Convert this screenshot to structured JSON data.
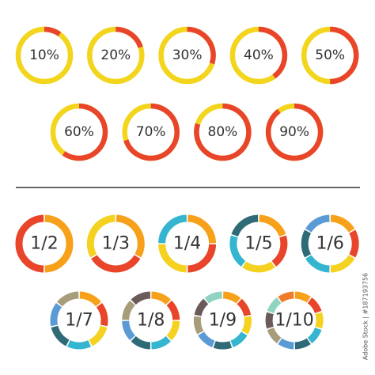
{
  "percent_rings": {
    "base_color": "#f2d51c",
    "fill_color": "#e8452b",
    "items": [
      {
        "label": "10%",
        "value": 10
      },
      {
        "label": "20%",
        "value": 20
      },
      {
        "label": "30%",
        "value": 30
      },
      {
        "label": "40%",
        "value": 40
      },
      {
        "label": "50%",
        "value": 50
      },
      {
        "label": "60%",
        "value": 60
      },
      {
        "label": "70%",
        "value": 70
      },
      {
        "label": "80%",
        "value": 80
      },
      {
        "label": "90%",
        "value": 90
      }
    ]
  },
  "fraction_rings": {
    "colors": [
      "#f7a11a",
      "#e8452b",
      "#f4d21f",
      "#35b5d0",
      "#2f6b77",
      "#5a9bd5",
      "#a89d7a",
      "#6b5a5a",
      "#8fd3c0",
      "#f07b2a"
    ],
    "items": [
      {
        "label": "1/2",
        "denominator": 2
      },
      {
        "label": "1/3",
        "denominator": 3
      },
      {
        "label": "1/4",
        "denominator": 4
      },
      {
        "label": "1/5",
        "denominator": 5
      },
      {
        "label": "1/6",
        "denominator": 6
      },
      {
        "label": "1/7",
        "denominator": 7
      },
      {
        "label": "1/8",
        "denominator": 8
      },
      {
        "label": "1/9",
        "denominator": 9
      },
      {
        "label": "1/10",
        "denominator": 10
      }
    ]
  },
  "watermark": "Adobe Stock | #187193756"
}
